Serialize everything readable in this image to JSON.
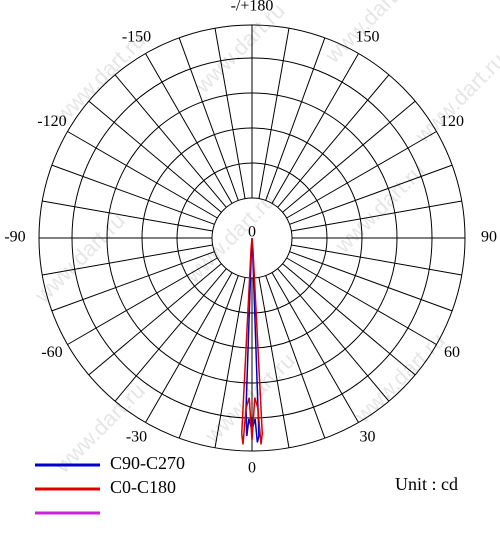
{
  "chart_data": {
    "type": "polar",
    "watermark": "www.dart.ru",
    "rlim": [
      0,
      100
    ],
    "rticks": [
      0
    ],
    "angle_ticks": [
      {
        "value": 180,
        "label": "-/+180"
      },
      150,
      120,
      90,
      60,
      30,
      0,
      -30,
      -60,
      -90,
      -120,
      -150
    ],
    "annotation": "Unit : cd",
    "series": [
      {
        "name": "C90-C270",
        "color": "#0000cc",
        "theta": [
          -6,
          -3,
          -2,
          -1.5,
          -1,
          0,
          1,
          1.5,
          2,
          3,
          6
        ],
        "r": [
          0,
          5,
          80,
          93,
          85,
          90,
          85,
          96,
          93,
          5,
          0
        ]
      },
      {
        "name": "C0-C180",
        "color": "#dd0000",
        "theta": [
          -8,
          -5,
          -3,
          -2.5,
          -2,
          -1,
          0,
          1,
          2,
          2.5,
          3,
          5,
          8
        ],
        "r": [
          0,
          5,
          92,
          97,
          80,
          75,
          95,
          75,
          80,
          97,
          92,
          5,
          0
        ]
      },
      {
        "name": null,
        "color": "#cc22dd",
        "theta": [],
        "r": []
      }
    ]
  }
}
